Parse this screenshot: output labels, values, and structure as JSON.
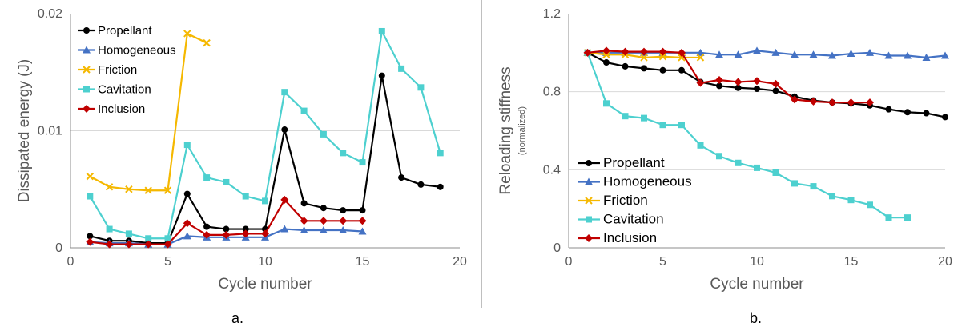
{
  "chart_data": [
    {
      "type": "line",
      "caption": "a.",
      "xlabel": "Cycle number",
      "ylabel": "Dissipated energy (J)",
      "xlim": [
        0,
        20
      ],
      "ylim": [
        0,
        0.02
      ],
      "xticks": [
        "0",
        "5",
        "10",
        "15",
        "20"
      ],
      "yticks": [
        "0",
        "0.01",
        "0.02"
      ],
      "legend_position": "top-left",
      "series": [
        {
          "name": "Propellant",
          "color": "#000000",
          "marker": "circle",
          "x": [
            1,
            2,
            3,
            4,
            5,
            6,
            7,
            8,
            9,
            10,
            11,
            12,
            13,
            14,
            15,
            16,
            17,
            18,
            19
          ],
          "y": [
            0.001,
            0.0006,
            0.0006,
            0.0004,
            0.0004,
            0.0046,
            0.0018,
            0.0016,
            0.0016,
            0.0016,
            0.0101,
            0.0038,
            0.0034,
            0.0032,
            0.0032,
            0.0147,
            0.006,
            0.0054,
            0.0052
          ]
        },
        {
          "name": "Homogeneous",
          "color": "#4472c4",
          "marker": "triangle",
          "x": [
            1,
            2,
            3,
            4,
            5,
            6,
            7,
            8,
            9,
            10,
            11,
            12,
            13,
            14,
            15
          ],
          "y": [
            0.0005,
            0.0004,
            0.0004,
            0.0003,
            0.0003,
            0.001,
            0.0009,
            0.0009,
            0.0009,
            0.0009,
            0.0016,
            0.0015,
            0.0015,
            0.0015,
            0.0014
          ]
        },
        {
          "name": "Friction",
          "color": "#f5b800",
          "marker": "x",
          "x": [
            1,
            2,
            3,
            4,
            5,
            6,
            7
          ],
          "y": [
            0.0061,
            0.0052,
            0.005,
            0.0049,
            0.0049,
            0.0183,
            0.0175
          ]
        },
        {
          "name": "Cavitation",
          "color": "#4dd0cf",
          "marker": "square",
          "x": [
            1,
            2,
            3,
            4,
            5,
            6,
            7,
            8,
            9,
            10,
            11,
            12,
            13,
            14,
            15,
            16,
            17,
            18,
            19
          ],
          "y": [
            0.0044,
            0.0016,
            0.0012,
            0.0008,
            0.0008,
            0.0088,
            0.006,
            0.0056,
            0.0044,
            0.004,
            0.0133,
            0.0117,
            0.0097,
            0.0081,
            0.0073,
            0.0185,
            0.0153,
            0.0137,
            0.0081
          ]
        },
        {
          "name": "Inclusion",
          "color": "#c00000",
          "marker": "diamond",
          "x": [
            1,
            2,
            3,
            4,
            5,
            6,
            7,
            8,
            9,
            10,
            11,
            12,
            13,
            14,
            15
          ],
          "y": [
            0.0005,
            0.0003,
            0.0003,
            0.0003,
            0.0003,
            0.0021,
            0.0011,
            0.0011,
            0.0012,
            0.0012,
            0.0041,
            0.0023,
            0.0023,
            0.0023,
            0.0023
          ]
        }
      ]
    },
    {
      "type": "line",
      "caption": "b.",
      "xlabel": "Cycle number",
      "ylabel": "Reloading stiffness",
      "ylabel_sub": "(normalized)",
      "xlim": [
        0,
        20
      ],
      "ylim": [
        0,
        1.2
      ],
      "xticks": [
        "0",
        "5",
        "10",
        "15",
        "20"
      ],
      "yticks": [
        "0",
        "0.4",
        "0.8",
        "1.2"
      ],
      "legend_position": "bottom-left",
      "series": [
        {
          "name": "Propellant",
          "color": "#000000",
          "marker": "circle",
          "x": [
            1,
            2,
            3,
            4,
            5,
            6,
            7,
            8,
            9,
            10,
            11,
            12,
            13,
            14,
            15,
            16,
            17,
            18,
            19,
            20
          ],
          "y": [
            1.0,
            0.95,
            0.93,
            0.92,
            0.91,
            0.91,
            0.85,
            0.83,
            0.82,
            0.815,
            0.805,
            0.775,
            0.755,
            0.745,
            0.74,
            0.73,
            0.71,
            0.695,
            0.69,
            0.67
          ]
        },
        {
          "name": "Homogeneous",
          "color": "#4472c4",
          "marker": "triangle",
          "x": [
            1,
            2,
            3,
            4,
            5,
            6,
            7,
            8,
            9,
            10,
            11,
            12,
            13,
            14,
            15,
            16,
            17,
            18,
            19,
            20
          ],
          "y": [
            1.0,
            1.0,
            1.0,
            1.0,
            1.0,
            1.0,
            1.0,
            0.99,
            0.99,
            1.01,
            1.0,
            0.99,
            0.99,
            0.985,
            0.995,
            1.0,
            0.985,
            0.985,
            0.975,
            0.985
          ]
        },
        {
          "name": "Friction",
          "color": "#f5b800",
          "marker": "x",
          "x": [
            1,
            2,
            3,
            4,
            5,
            6,
            7
          ],
          "y": [
            1.0,
            0.99,
            0.99,
            0.975,
            0.98,
            0.975,
            0.975
          ]
        },
        {
          "name": "Cavitation",
          "color": "#4dd0cf",
          "marker": "square",
          "x": [
            1,
            2,
            3,
            4,
            5,
            6,
            7,
            8,
            9,
            10,
            11,
            12,
            13,
            14,
            15,
            16,
            17,
            18
          ],
          "y": [
            1.0,
            0.74,
            0.675,
            0.665,
            0.63,
            0.63,
            0.525,
            0.47,
            0.435,
            0.41,
            0.385,
            0.33,
            0.315,
            0.265,
            0.245,
            0.22,
            0.155,
            0.155
          ]
        },
        {
          "name": "Inclusion",
          "color": "#c00000",
          "marker": "diamond",
          "x": [
            1,
            2,
            3,
            4,
            5,
            6,
            7,
            8,
            9,
            10,
            11,
            12,
            13,
            14,
            15,
            16
          ],
          "y": [
            1.0,
            1.01,
            1.005,
            1.005,
            1.005,
            1.0,
            0.845,
            0.86,
            0.85,
            0.855,
            0.84,
            0.76,
            0.75,
            0.745,
            0.745,
            0.745
          ]
        }
      ]
    }
  ]
}
